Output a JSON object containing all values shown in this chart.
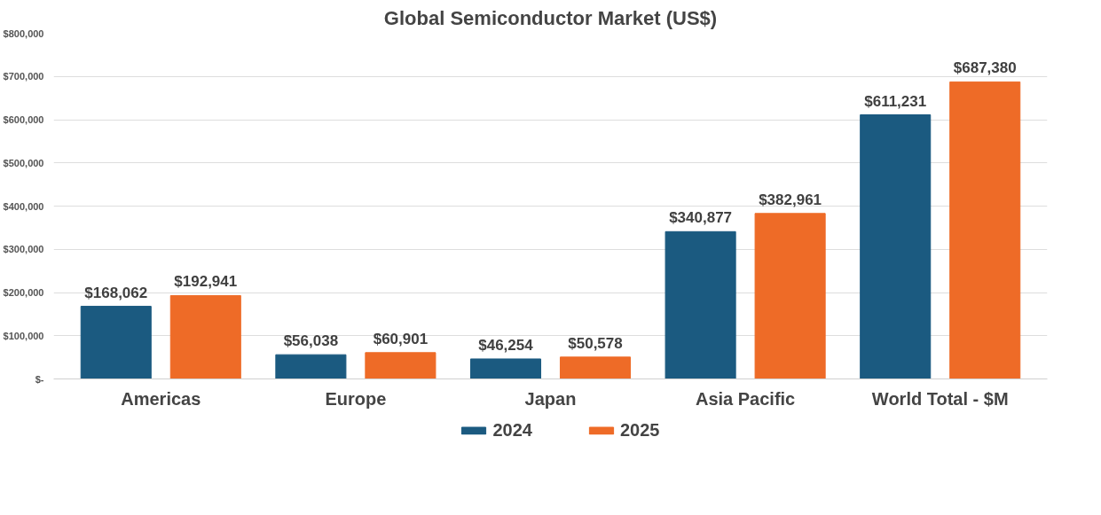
{
  "chart_data": {
    "type": "bar",
    "title": "Global Semiconductor Market (US$)",
    "categories": [
      "Americas",
      "Europe",
      "Japan",
      "Asia Pacific",
      "World Total - $M"
    ],
    "series": [
      {
        "name": "2024",
        "color": "#1b5a80",
        "values": [
          168062,
          56038,
          46254,
          340877,
          611231
        ],
        "value_labels": [
          "$168,062",
          "$56,038",
          "$46,254",
          "$340,877",
          "$611,231"
        ]
      },
      {
        "name": "2025",
        "color": "#ee6b27",
        "values": [
          192941,
          60901,
          50578,
          382961,
          687380
        ],
        "value_labels": [
          "$192,941",
          "$60,901",
          "$50,578",
          "$382,961",
          "$687,380"
        ]
      }
    ],
    "ylim": [
      0,
      800000
    ],
    "yticks": [
      {
        "value": 0,
        "label": "$-"
      },
      {
        "value": 100000,
        "label": "$100,000"
      },
      {
        "value": 200000,
        "label": "$200,000"
      },
      {
        "value": 300000,
        "label": "$300,000"
      },
      {
        "value": 400000,
        "label": "$400,000"
      },
      {
        "value": 500000,
        "label": "$500,000"
      },
      {
        "value": 600000,
        "label": "$600,000"
      },
      {
        "value": 700000,
        "label": "$700,000"
      },
      {
        "value": 800000,
        "label": "$800,000"
      }
    ],
    "grid": "y",
    "legend": "bottom"
  }
}
